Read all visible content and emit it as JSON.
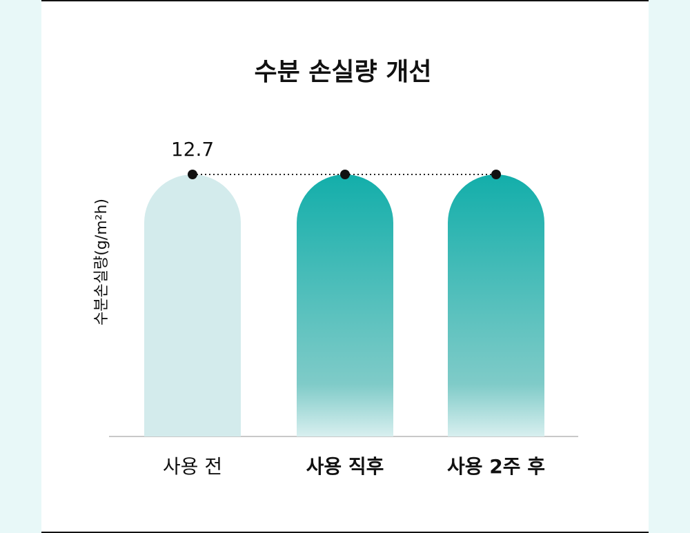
{
  "chart_data": {
    "type": "bar",
    "title": "수분 손실량 개선",
    "y_label": "수분손실량(g/m²h)",
    "categories": [
      "사용 전",
      "사용 직후",
      "사용 2주 후"
    ],
    "values": [
      12.7,
      12.7,
      12.7
    ],
    "value_labels": [
      "12.7",
      null,
      null
    ],
    "colors": [
      "#d3ebec",
      "#13aeaa",
      "#13aeaa"
    ]
  }
}
